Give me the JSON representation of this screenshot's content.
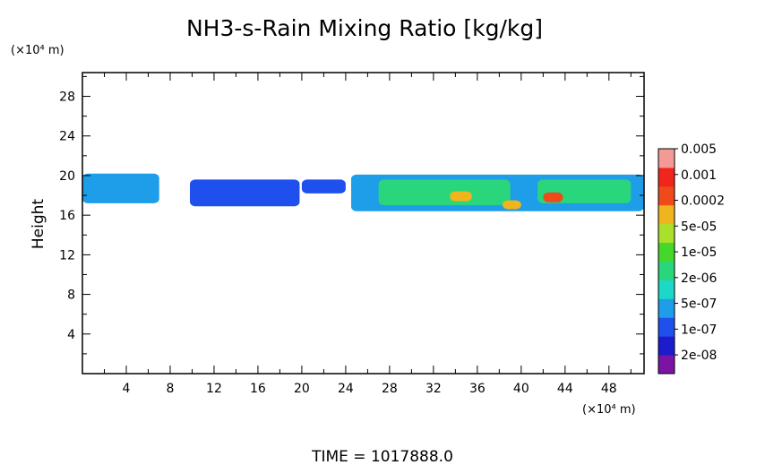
{
  "chart_data": {
    "type": "heatmap",
    "title": "NH3-s-Rain Mixing Ratio [kg/kg]",
    "ylabel": "Height",
    "y_unit_label": "(×10⁴ m)",
    "x_unit_label": "(×10⁴ m)",
    "footer": "TIME  =  1017888.0",
    "xlim": [
      0,
      51.2
    ],
    "ylim": [
      0,
      30.4
    ],
    "x_ticks": [
      4,
      8,
      12,
      16,
      20,
      24,
      28,
      32,
      36,
      40,
      44,
      48
    ],
    "x_tick_labels": [
      "4",
      "8",
      "12",
      "16",
      "20",
      "24",
      "28",
      "32",
      "36",
      "40",
      "44",
      "48"
    ],
    "y_ticks": [
      4,
      8,
      12,
      16,
      20,
      24,
      28
    ],
    "y_tick_labels": [
      "4",
      "8",
      "12",
      "16",
      "20",
      "24",
      "28"
    ],
    "colorbar": {
      "colors": [
        "#7b14a3",
        "#1c1ccc",
        "#1f50ee",
        "#1e9de8",
        "#1cd8c8",
        "#2ad67b",
        "#44d82a",
        "#a8e02a",
        "#f0b41c",
        "#f04a1c",
        "#f0251c",
        "#f49a96"
      ],
      "labels": [
        "2e-08",
        "1e-07",
        "5e-07",
        "2e-06",
        "1e-05",
        "5e-05",
        "0.0002",
        "0.001",
        "0.005"
      ]
    },
    "regions": [
      {
        "x0": 0.0,
        "x1": 7.0,
        "y0": 17.2,
        "y1": 20.2,
        "level": 3
      },
      {
        "x0": 9.8,
        "x1": 19.8,
        "y0": 16.9,
        "y1": 19.6,
        "level": 2
      },
      {
        "x0": 20.0,
        "x1": 24.0,
        "y0": 18.2,
        "y1": 19.6,
        "level": 2
      },
      {
        "x0": 24.5,
        "x1": 51.2,
        "y0": 16.4,
        "y1": 20.1,
        "level": 3
      },
      {
        "x0": 27.0,
        "x1": 39.0,
        "y0": 17.0,
        "y1": 19.6,
        "level": 5
      },
      {
        "x0": 33.5,
        "x1": 35.5,
        "y0": 17.4,
        "y1": 18.4,
        "level": 8
      },
      {
        "x0": 38.3,
        "x1": 40.0,
        "y0": 16.6,
        "y1": 17.5,
        "level": 8
      },
      {
        "x0": 41.5,
        "x1": 50.0,
        "y0": 17.2,
        "y1": 19.6,
        "level": 5
      },
      {
        "x0": 42.0,
        "x1": 43.8,
        "y0": 17.3,
        "y1": 18.3,
        "level": 9
      }
    ]
  }
}
